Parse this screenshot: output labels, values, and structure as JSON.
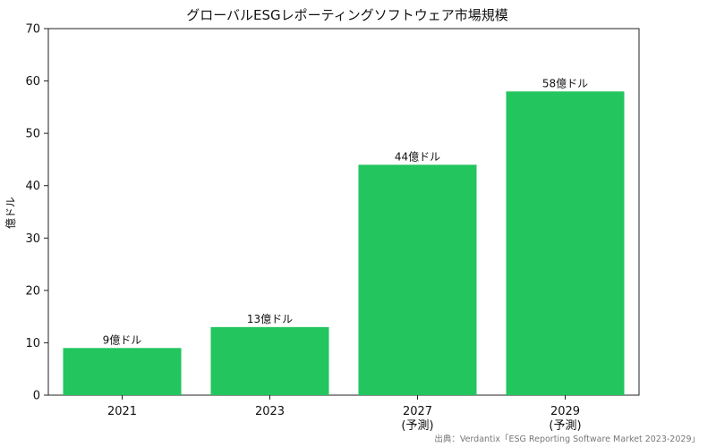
{
  "chart_data": {
    "type": "bar",
    "title": "グローバルESGレポーティングソフトウェア市場規模",
    "xlabel": "",
    "ylabel": "億ドル",
    "categories": [
      [
        "2021"
      ],
      [
        "2023"
      ],
      [
        "2027",
        "(予測)"
      ],
      [
        "2029",
        "(予測)"
      ]
    ],
    "values": [
      9,
      13,
      44,
      58
    ],
    "value_labels": [
      "9億ドル",
      "13億ドル",
      "44億ドル",
      "58億ドル"
    ],
    "ylim": [
      0,
      70
    ],
    "yticks": [
      0,
      10,
      20,
      30,
      40,
      50,
      60,
      70
    ],
    "bar_color": "#22c55e",
    "grid": false,
    "source": "出典：Verdantix「ESG Reporting Software Market 2023-2029」"
  }
}
